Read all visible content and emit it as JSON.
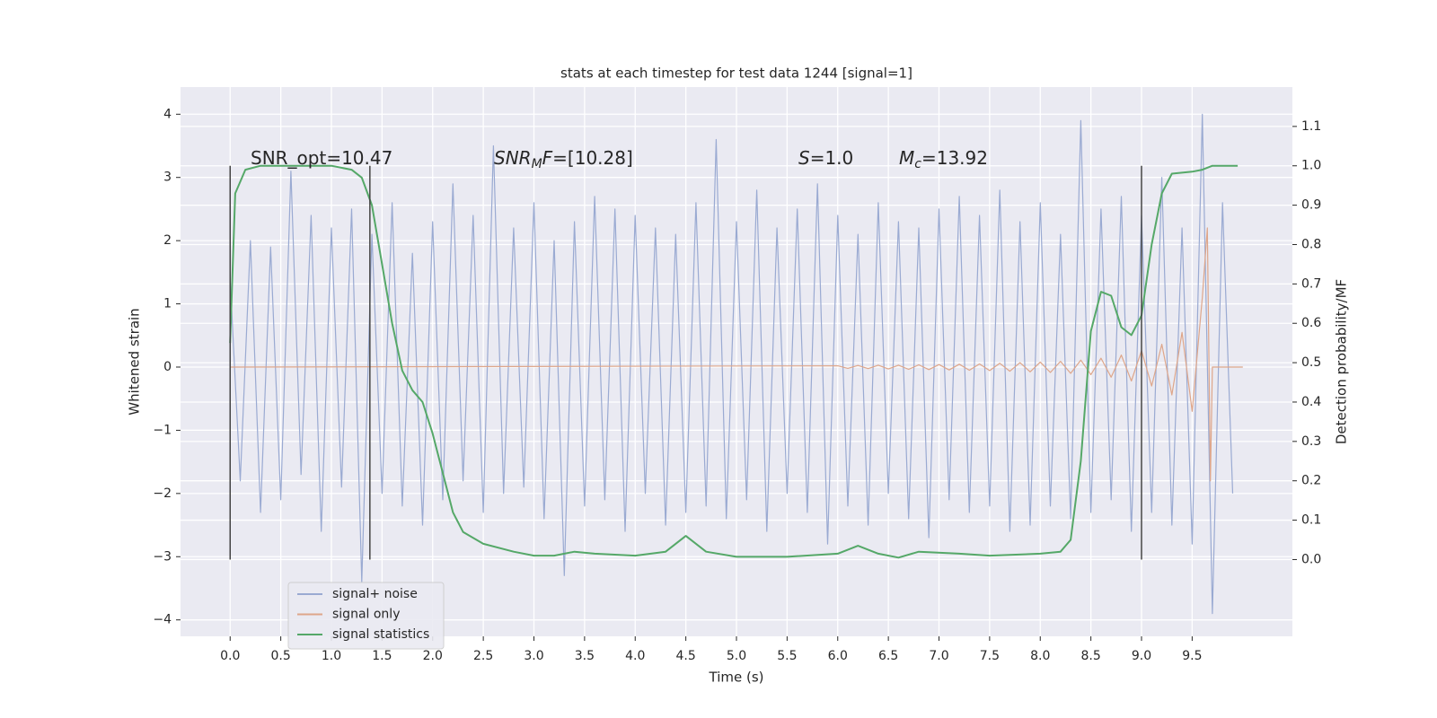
{
  "chart_data": {
    "type": "line",
    "title": "stats at each timestep for test data 1244 [signal=1]",
    "xlabel": "Time (s)",
    "ylabel": "Whitened strain",
    "y2label": "Detection probability/MF",
    "xlim": [
      -0.49,
      10.49
    ],
    "ylim": [
      -4.26,
      4.43
    ],
    "y2lim": [
      -0.195,
      1.2
    ],
    "xticks": [
      {
        "value": 0,
        "label": "0.0"
      },
      0.5,
      {
        "value": 1,
        "label": "1.0"
      },
      1.5,
      {
        "value": 2,
        "label": "2.0"
      },
      2.5,
      {
        "value": 3,
        "label": "3.0"
      },
      3.5,
      {
        "value": 4,
        "label": "4.0"
      },
      4.5,
      {
        "value": 5,
        "label": "5.0"
      },
      5.5,
      {
        "value": 6,
        "label": "6.0"
      },
      6.5,
      {
        "value": 7,
        "label": "7.0"
      },
      7.5,
      {
        "value": 8,
        "label": "8.0"
      },
      8.5,
      {
        "value": 9,
        "label": "9.0"
      },
      9.5
    ],
    "yticks": [
      {
        "value": -4,
        "label": "−4"
      },
      {
        "value": -3,
        "label": "−3"
      },
      {
        "value": -2,
        "label": "−2"
      },
      {
        "value": -1,
        "label": "−1"
      },
      0,
      1,
      2,
      3,
      4
    ],
    "y2ticks": [
      {
        "value": 0,
        "label": "0.0"
      },
      0.1,
      0.2,
      0.3,
      0.4,
      0.5,
      0.6,
      0.7,
      0.8,
      0.9,
      {
        "value": 1,
        "label": "1.0"
      },
      1.1
    ],
    "grid": true,
    "legend": "lower left",
    "vlines": {
      "x": [
        0,
        1.38,
        9.0
      ],
      "from": 0,
      "to": 1.0,
      "axis": "y2",
      "color": "#444444"
    },
    "annotations": [
      [
        {
          "text": "SNR_opt=10.47",
          "style": "normal"
        }
      ],
      [
        {
          "text": "SNR",
          "style": "italic"
        },
        {
          "text": "M",
          "style": "italic-sub"
        },
        {
          "text": "F",
          "style": "italic"
        },
        {
          "text": "=[10.28]",
          "style": "normal"
        }
      ],
      [
        {
          "text": "S",
          "style": "italic"
        },
        {
          "text": "=1.0",
          "style": "normal"
        }
      ],
      [
        {
          "text": "M",
          "style": "italic"
        },
        {
          "text": "c",
          "style": "italic-sub"
        },
        {
          "text": "=13.92",
          "style": "normal"
        }
      ]
    ],
    "series": [
      {
        "name": "signal+ noise",
        "color": "#9aaad2",
        "x": [
          0.0,
          0.1,
          0.2,
          0.3,
          0.4,
          0.5,
          0.6,
          0.7,
          0.8,
          0.9,
          1.0,
          1.1,
          1.2,
          1.3,
          1.4,
          1.5,
          1.6,
          1.7,
          1.8,
          1.9,
          2.0,
          2.1,
          2.2,
          2.3,
          2.4,
          2.5,
          2.6,
          2.7,
          2.8,
          2.9,
          3.0,
          3.1,
          3.2,
          3.3,
          3.4,
          3.5,
          3.6,
          3.7,
          3.8,
          3.9,
          4.0,
          4.1,
          4.2,
          4.3,
          4.4,
          4.5,
          4.6,
          4.7,
          4.8,
          4.9,
          5.0,
          5.1,
          5.2,
          5.3,
          5.4,
          5.5,
          5.6,
          5.7,
          5.8,
          5.9,
          6.0,
          6.1,
          6.2,
          6.3,
          6.4,
          6.5,
          6.6,
          6.7,
          6.8,
          6.9,
          7.0,
          7.1,
          7.2,
          7.3,
          7.4,
          7.5,
          7.6,
          7.7,
          7.8,
          7.9,
          8.0,
          8.1,
          8.2,
          8.3,
          8.4,
          8.5,
          8.6,
          8.7,
          8.8,
          8.9,
          9.0,
          9.1,
          9.2,
          9.3,
          9.4,
          9.5,
          9.6,
          9.7,
          9.8,
          9.9
        ],
        "values": [
          1.4,
          -1.8,
          2.0,
          -2.3,
          1.9,
          -2.1,
          3.1,
          -1.7,
          2.4,
          -2.6,
          2.2,
          -1.9,
          2.5,
          -3.4,
          2.1,
          -2.0,
          2.6,
          -2.2,
          1.8,
          -2.5,
          2.3,
          -2.1,
          2.9,
          -1.8,
          2.4,
          -2.3,
          3.5,
          -2.0,
          2.2,
          -1.9,
          2.6,
          -2.4,
          2.0,
          -3.3,
          2.3,
          -2.2,
          2.7,
          -2.1,
          2.5,
          -2.6,
          2.4,
          -2.0,
          2.2,
          -2.5,
          2.1,
          -2.3,
          2.6,
          -2.2,
          3.6,
          -2.4,
          2.3,
          -2.1,
          2.8,
          -2.6,
          2.2,
          -2.0,
          2.5,
          -2.3,
          2.9,
          -2.8,
          2.4,
          -2.2,
          2.1,
          -2.5,
          2.6,
          -2.0,
          2.3,
          -2.4,
          2.2,
          -2.7,
          2.5,
          -2.1,
          2.7,
          -2.3,
          2.4,
          -2.2,
          2.8,
          -2.6,
          2.3,
          -2.5,
          2.6,
          -2.2,
          2.1,
          -2.4,
          3.9,
          -2.3,
          2.5,
          -2.1,
          2.7,
          -2.6,
          2.4,
          -2.3,
          3.0,
          -2.5,
          2.2,
          -2.8,
          4.0,
          -3.9,
          2.6,
          -2.0
        ]
      },
      {
        "name": "signal only",
        "color": "#dea68a",
        "x": [
          0,
          6.0,
          6.1,
          6.2,
          6.3,
          6.4,
          6.5,
          6.6,
          6.7,
          6.8,
          6.9,
          7.0,
          7.1,
          7.2,
          7.3,
          7.4,
          7.5,
          7.6,
          7.7,
          7.8,
          7.9,
          8.0,
          8.1,
          8.2,
          8.3,
          8.4,
          8.5,
          8.6,
          8.7,
          8.8,
          8.9,
          9.0,
          9.1,
          9.2,
          9.3,
          9.4,
          9.5,
          9.6,
          9.65,
          9.68,
          9.7,
          10.0
        ],
        "values": [
          0,
          0.02,
          -0.02,
          0.025,
          -0.025,
          0.03,
          -0.03,
          0.03,
          -0.035,
          0.035,
          -0.04,
          0.04,
          -0.045,
          0.045,
          -0.05,
          0.05,
          -0.055,
          0.06,
          -0.065,
          0.07,
          -0.075,
          0.08,
          -0.085,
          0.09,
          -0.1,
          0.11,
          -0.12,
          0.14,
          -0.16,
          0.19,
          -0.22,
          0.26,
          -0.3,
          0.36,
          -0.44,
          0.55,
          -0.7,
          1.1,
          2.2,
          -1.8,
          0,
          0
        ]
      },
      {
        "name": "signal statistics",
        "color": "#55a868",
        "axis": "y2",
        "x": [
          0,
          0.05,
          0.15,
          0.3,
          1.0,
          1.2,
          1.3,
          1.4,
          1.5,
          1.6,
          1.7,
          1.8,
          1.9,
          2.0,
          2.1,
          2.2,
          2.3,
          2.5,
          2.8,
          3.0,
          3.2,
          3.4,
          3.6,
          4.0,
          4.3,
          4.5,
          4.7,
          5.0,
          5.5,
          6.0,
          6.2,
          6.4,
          6.6,
          6.8,
          7.2,
          7.5,
          8.0,
          8.2,
          8.3,
          8.4,
          8.5,
          8.6,
          8.7,
          8.8,
          8.9,
          9.0,
          9.1,
          9.2,
          9.3,
          9.5,
          9.6,
          9.7,
          9.95
        ],
        "values": [
          0.55,
          0.93,
          0.99,
          1.0,
          1.0,
          0.99,
          0.97,
          0.9,
          0.75,
          0.6,
          0.48,
          0.43,
          0.4,
          0.32,
          0.22,
          0.12,
          0.07,
          0.04,
          0.02,
          0.01,
          0.01,
          0.02,
          0.015,
          0.01,
          0.02,
          0.06,
          0.02,
          0.007,
          0.007,
          0.015,
          0.035,
          0.015,
          0.005,
          0.02,
          0.015,
          0.01,
          0.015,
          0.02,
          0.05,
          0.25,
          0.58,
          0.68,
          0.67,
          0.59,
          0.57,
          0.62,
          0.8,
          0.93,
          0.98,
          0.985,
          0.99,
          1.0,
          1.0
        ]
      }
    ]
  }
}
